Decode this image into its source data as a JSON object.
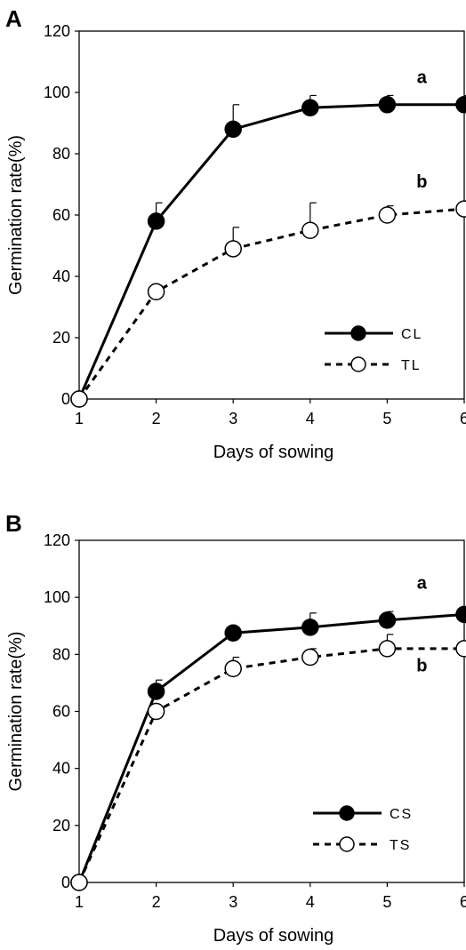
{
  "chart_data": [
    {
      "type": "line",
      "panel": "A",
      "xlabel": "Days of sowing",
      "ylabel": "Germination rate(%)",
      "x": [
        1,
        2,
        3,
        4,
        5,
        6
      ],
      "xlim": [
        1,
        6
      ],
      "ylim": [
        0,
        120
      ],
      "xticks": [
        "1",
        "2",
        "3",
        "4",
        "5",
        "6"
      ],
      "yticks": [
        "0",
        "20",
        "40",
        "60",
        "80",
        "100",
        "120"
      ],
      "grid": false,
      "legend_position": "bottom-right",
      "series": [
        {
          "name": "CL",
          "values": [
            0,
            58,
            88,
            95,
            96,
            96
          ],
          "error": [
            0,
            6,
            8,
            4,
            3,
            3
          ],
          "line": "solid",
          "marker": "filled-circle"
        },
        {
          "name": "TL",
          "values": [
            0,
            35,
            49,
            55,
            60,
            62
          ],
          "error": [
            0,
            2,
            7,
            9,
            3,
            0
          ],
          "line": "dashed",
          "marker": "open-circle"
        }
      ],
      "annotations": [
        {
          "text": "a",
          "x": 5.45,
          "y": 103
        },
        {
          "text": "b",
          "x": 5.45,
          "y": 69
        }
      ]
    },
    {
      "type": "line",
      "panel": "B",
      "xlabel": "Days of sowing",
      "ylabel": "Germination rate(%)",
      "x": [
        1,
        2,
        3,
        4,
        5,
        6
      ],
      "xlim": [
        1,
        6
      ],
      "ylim": [
        0,
        120
      ],
      "xticks": [
        "1",
        "2",
        "3",
        "4",
        "5",
        "6"
      ],
      "yticks": [
        "0",
        "20",
        "40",
        "60",
        "80",
        "100",
        "120"
      ],
      "grid": false,
      "legend_position": "bottom-right",
      "series": [
        {
          "name": "CS",
          "values": [
            0,
            67,
            87.5,
            89.5,
            92,
            94
          ],
          "error": [
            0,
            4,
            2,
            5,
            3,
            0
          ],
          "line": "solid",
          "marker": "filled-circle"
        },
        {
          "name": "TS",
          "values": [
            0,
            60,
            75,
            79,
            82,
            82
          ],
          "error": [
            0,
            0,
            4,
            3,
            5,
            0
          ],
          "line": "dashed",
          "marker": "open-circle"
        }
      ],
      "annotations": [
        {
          "text": "a",
          "x": 5.45,
          "y": 103
        },
        {
          "text": "b",
          "x": 5.45,
          "y": 74
        }
      ]
    }
  ]
}
